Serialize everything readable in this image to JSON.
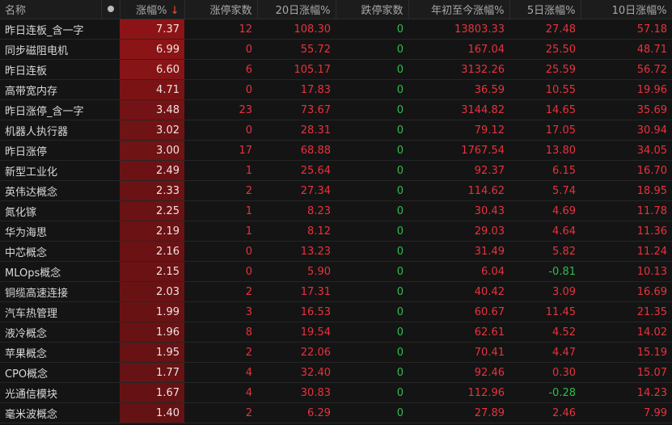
{
  "colors": {
    "up": "#e8323c",
    "down": "#2ebd4e",
    "highlight": "#8b1414"
  },
  "headers": {
    "name": "名称",
    "dot": "",
    "chg": "涨幅%",
    "sort_arrow": "↓",
    "limit_up": "涨停家数",
    "d20": "20日涨幅%",
    "limit_down": "跌停家数",
    "ytd": "年初至今涨幅%",
    "d5": "5日涨幅%",
    "d10": "10日涨幅%"
  },
  "rows": [
    [
      "昨日连板_含一字",
      "7.37",
      "12",
      "108.30",
      "0",
      "13803.33",
      "27.48",
      "57.18"
    ],
    [
      "同步磁阻电机",
      "6.99",
      "0",
      "55.72",
      "0",
      "167.04",
      "25.50",
      "48.71"
    ],
    [
      "昨日连板",
      "6.60",
      "6",
      "105.17",
      "0",
      "3132.26",
      "25.59",
      "56.72"
    ],
    [
      "高带宽内存",
      "4.71",
      "0",
      "17.83",
      "0",
      "36.59",
      "10.55",
      "19.96"
    ],
    [
      "昨日涨停_含一字",
      "3.48",
      "23",
      "73.67",
      "0",
      "3144.82",
      "14.65",
      "35.69"
    ],
    [
      "机器人执行器",
      "3.02",
      "0",
      "28.31",
      "0",
      "79.12",
      "17.05",
      "30.94"
    ],
    [
      "昨日涨停",
      "3.00",
      "17",
      "68.88",
      "0",
      "1767.54",
      "13.80",
      "34.05"
    ],
    [
      "新型工业化",
      "2.49",
      "1",
      "25.64",
      "0",
      "92.37",
      "6.15",
      "16.70"
    ],
    [
      "英伟达概念",
      "2.33",
      "2",
      "27.34",
      "0",
      "114.62",
      "5.74",
      "18.95"
    ],
    [
      "氮化镓",
      "2.25",
      "1",
      "8.23",
      "0",
      "30.43",
      "4.69",
      "11.78"
    ],
    [
      "华为海思",
      "2.19",
      "1",
      "8.12",
      "0",
      "29.03",
      "4.64",
      "11.36"
    ],
    [
      "中芯概念",
      "2.16",
      "0",
      "13.23",
      "0",
      "31.49",
      "5.82",
      "11.24"
    ],
    [
      "MLOps概念",
      "2.15",
      "0",
      "5.90",
      "0",
      "6.04",
      "-0.81",
      "10.13"
    ],
    [
      "铜缆高速连接",
      "2.03",
      "2",
      "17.31",
      "0",
      "40.42",
      "3.09",
      "16.69"
    ],
    [
      "汽车热管理",
      "1.99",
      "3",
      "16.53",
      "0",
      "60.67",
      "11.45",
      "21.35"
    ],
    [
      "液冷概念",
      "1.96",
      "8",
      "19.54",
      "0",
      "62.61",
      "4.52",
      "14.02"
    ],
    [
      "苹果概念",
      "1.95",
      "2",
      "22.06",
      "0",
      "70.41",
      "4.47",
      "15.19"
    ],
    [
      "CPO概念",
      "1.77",
      "4",
      "32.40",
      "0",
      "92.46",
      "0.30",
      "15.07"
    ],
    [
      "光通信模块",
      "1.67",
      "4",
      "30.83",
      "0",
      "112.96",
      "-0.28",
      "14.23"
    ],
    [
      "毫米波概念",
      "1.40",
      "2",
      "6.29",
      "0",
      "27.89",
      "2.46",
      "7.99"
    ]
  ]
}
